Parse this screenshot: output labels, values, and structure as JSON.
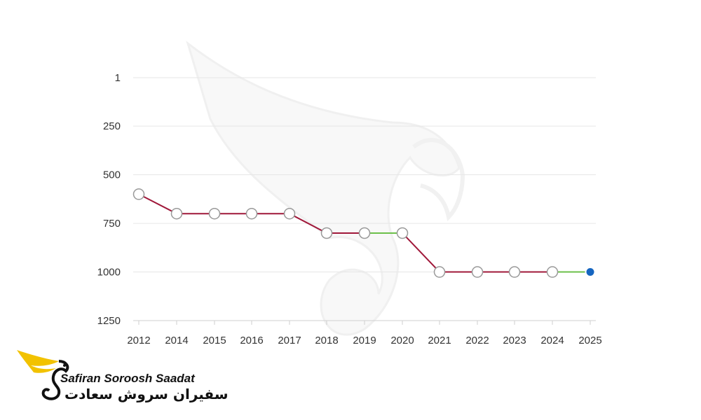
{
  "chart_data": {
    "type": "line",
    "title": "",
    "xlabel": "",
    "ylabel": "",
    "categories": [
      "2012",
      "2014",
      "2015",
      "2016",
      "2017",
      "2018",
      "2019",
      "2020",
      "2021",
      "2022",
      "2023",
      "2024",
      "2025"
    ],
    "values": [
      600,
      700,
      700,
      700,
      700,
      800,
      800,
      800,
      1000,
      1000,
      1000,
      1000,
      1000
    ],
    "segment_colors": [
      "#a0183a",
      "#a0183a",
      "#a0183a",
      "#a0183a",
      "#a0183a",
      "#a0183a",
      "#6cc04a",
      "#a0183a",
      "#a0183a",
      "#a0183a",
      "#a0183a",
      "#6cc04a"
    ],
    "highlight_point_color": "#1565c0",
    "y_axis": {
      "reversed": true,
      "range": [
        1,
        1250
      ],
      "ticks": [
        1,
        250,
        500,
        750,
        1000,
        1250
      ]
    },
    "grid": true,
    "legend": "none"
  },
  "colors": {
    "line": "#a0183a",
    "up_segment": "#6cc04a",
    "marker_fill": "#ffffff",
    "marker_stroke": "#999999",
    "grid": "#e6e6e6",
    "logo_yellow": "#f2c200"
  },
  "logo": {
    "name_en": "Safiran Soroosh Saadat",
    "name_fa": "سفیران سروش سعادت"
  }
}
